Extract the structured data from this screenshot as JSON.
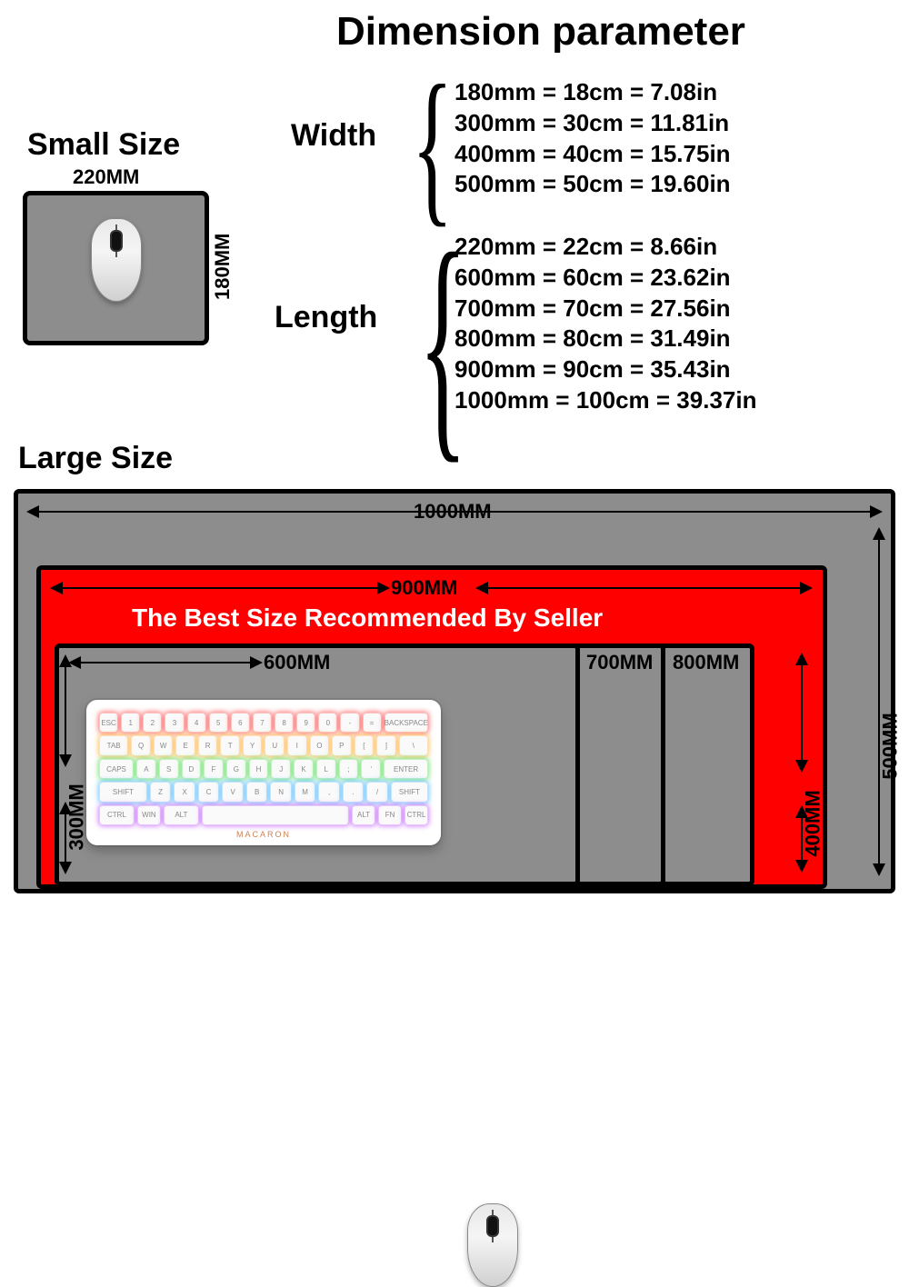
{
  "title": "Dimension parameter",
  "small": {
    "label": "Small Size",
    "width": "220MM",
    "height": "180MM"
  },
  "params": {
    "width_label": "Width",
    "length_label": "Length",
    "width_rows": [
      "180mm = 18cm = 7.08in",
      "300mm = 30cm = 11.81in",
      "400mm = 40cm = 15.75in",
      "500mm = 50cm = 19.60in"
    ],
    "length_rows": [
      "220mm = 22cm = 8.66in",
      "600mm = 60cm = 23.62in",
      "700mm = 70cm = 27.56in",
      "800mm = 80cm = 31.49in",
      "900mm = 90cm = 35.43in",
      "1000mm = 100cm = 39.37in"
    ]
  },
  "large": {
    "label": "Large Size",
    "recommend": "The Best Size Recommended By Seller",
    "dims": {
      "d1000": "1000MM",
      "d900": "900MM",
      "d800": "800MM",
      "d700": "700MM",
      "d600": "600MM",
      "d500": "500MM",
      "d400": "400MM",
      "d300": "300MM"
    }
  },
  "keyboard": {
    "brand": "MACARON",
    "rows": [
      [
        "ESC",
        "1",
        "2",
        "3",
        "4",
        "5",
        "6",
        "7",
        "8",
        "9",
        "0",
        "-",
        "=",
        "BACKSPACE"
      ],
      [
        "TAB",
        "Q",
        "W",
        "E",
        "R",
        "T",
        "Y",
        "U",
        "I",
        "O",
        "P",
        "[",
        "]",
        "\\"
      ],
      [
        "CAPS",
        "A",
        "S",
        "D",
        "F",
        "G",
        "H",
        "J",
        "K",
        "L",
        ";",
        "'",
        "ENTER"
      ],
      [
        "SHIFT",
        "Z",
        "X",
        "C",
        "V",
        "B",
        "N",
        "M",
        ",",
        ".",
        "/",
        "SHIFT"
      ],
      [
        "CTRL",
        "WIN",
        "ALT",
        "",
        "ALT",
        "FN",
        "CTRL"
      ]
    ]
  },
  "colors": {
    "pad_gray": "#8d8d8d",
    "recommend_red": "#ff0000",
    "background": "#ffffff",
    "border": "#000000"
  }
}
